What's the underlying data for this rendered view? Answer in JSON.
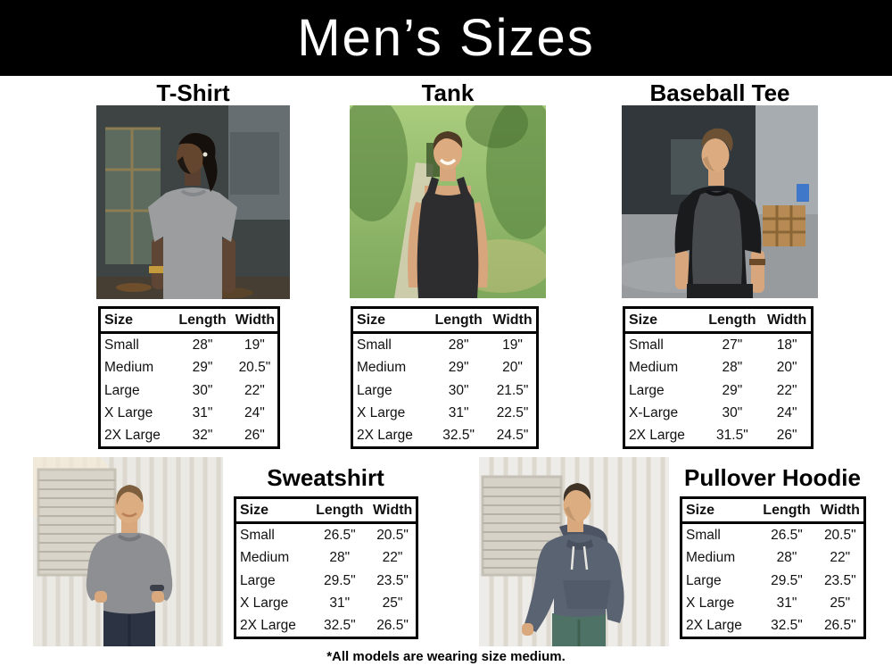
{
  "header": {
    "title": "Men’s Sizes"
  },
  "table_headers": [
    "Size",
    "Length",
    "Width"
  ],
  "sections": [
    {
      "title": "T-Shirt",
      "rows": [
        [
          "Small",
          "28\"",
          "19\""
        ],
        [
          "Medium",
          "29\"",
          "20.5\""
        ],
        [
          "Large",
          "30\"",
          "22\""
        ],
        [
          "X Large",
          "31\"",
          "24\""
        ],
        [
          "2X Large",
          "32\"",
          "26\""
        ]
      ]
    },
    {
      "title": "Tank",
      "rows": [
        [
          "Small",
          "28\"",
          "19\""
        ],
        [
          "Medium",
          "29\"",
          "20\""
        ],
        [
          "Large",
          "30\"",
          "21.5\""
        ],
        [
          "X Large",
          "31\"",
          "22.5\""
        ],
        [
          "2X Large",
          "32.5\"",
          "24.5\""
        ]
      ]
    },
    {
      "title": "Baseball Tee",
      "rows": [
        [
          "Small",
          "27\"",
          "18\""
        ],
        [
          "Medium",
          "28\"",
          "20\""
        ],
        [
          "Large",
          "29\"",
          "22\""
        ],
        [
          "X-Large",
          "30\"",
          "24\""
        ],
        [
          "2X Large",
          "31.5\"",
          "26\""
        ]
      ]
    },
    {
      "title": "Sweatshirt",
      "rows": [
        [
          "Small",
          "26.5\"",
          "20.5\""
        ],
        [
          "Medium",
          "28\"",
          "22\""
        ],
        [
          "Large",
          "29.5\"",
          "23.5\""
        ],
        [
          "X Large",
          "31\"",
          "25\""
        ],
        [
          "2X Large",
          "32.5\"",
          "26.5\""
        ]
      ]
    },
    {
      "title": "Pullover Hoodie",
      "rows": [
        [
          "Small",
          "26.5\"",
          "20.5\""
        ],
        [
          "Medium",
          "28\"",
          "22\""
        ],
        [
          "Large",
          "29.5\"",
          "23.5\""
        ],
        [
          "X Large",
          "31\"",
          "25\""
        ],
        [
          "2X Large",
          "32.5\"",
          "26.5\""
        ]
      ]
    }
  ],
  "footer": {
    "note": "*All models are wearing size medium."
  },
  "colors": {
    "header_bg": "#000000",
    "header_text": "#ffffff",
    "table_border": "#000000",
    "body_bg": "#ffffff",
    "text": "#111111"
  }
}
